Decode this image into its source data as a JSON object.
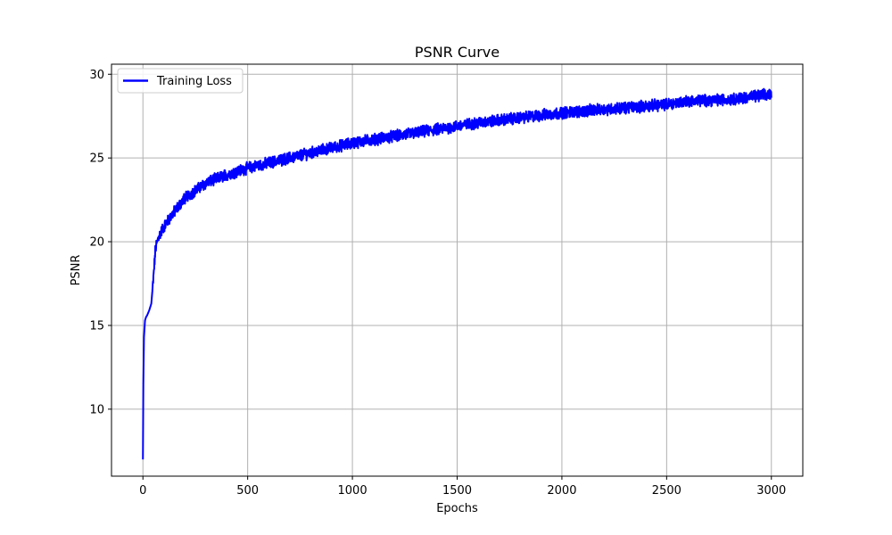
{
  "chart_data": {
    "type": "line",
    "title": "PSNR Curve",
    "xlabel": "Epochs",
    "ylabel": "PSNR",
    "xlim": [
      -150,
      3150
    ],
    "ylim": [
      6,
      30.6
    ],
    "xticks": [
      0,
      500,
      1000,
      1500,
      2000,
      2500,
      3000
    ],
    "yticks": [
      10,
      15,
      20,
      25,
      30
    ],
    "xtick_labels": [
      "0",
      "500",
      "1000",
      "1500",
      "2000",
      "2500",
      "3000"
    ],
    "ytick_labels": [
      "10",
      "15",
      "20",
      "25",
      "30"
    ],
    "grid": true,
    "legend_position": "upper-left",
    "series": [
      {
        "name": "Training Loss",
        "color": "#0000ff",
        "x": [
          0,
          2,
          5,
          10,
          15,
          20,
          30,
          40,
          50,
          60,
          75,
          100,
          150,
          200,
          300,
          400,
          500,
          600,
          700,
          800,
          900,
          1000,
          1200,
          1400,
          1500,
          1600,
          1800,
          2000,
          2200,
          2400,
          2500,
          2600,
          2800,
          3000
        ],
        "values": [
          7.0,
          11.5,
          14.3,
          15.3,
          15.5,
          15.6,
          15.9,
          16.3,
          17.8,
          19.6,
          20.3,
          20.9,
          21.8,
          22.6,
          23.5,
          24.0,
          24.4,
          24.7,
          25.0,
          25.3,
          25.6,
          25.9,
          26.3,
          26.7,
          26.9,
          27.1,
          27.4,
          27.7,
          27.9,
          28.1,
          28.2,
          28.4,
          28.5,
          28.8
        ],
        "noise_amplitude": 0.4
      }
    ]
  }
}
